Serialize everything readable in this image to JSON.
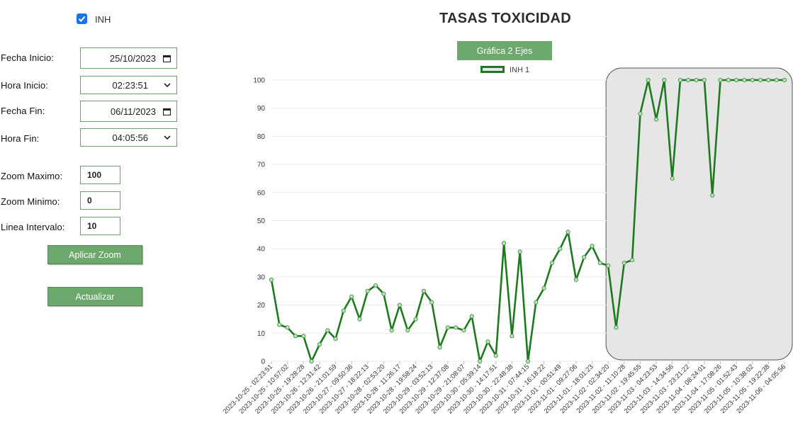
{
  "controls": {
    "checkbox_label": "INH",
    "fecha_inicio_label": "Fecha Inicio:",
    "fecha_inicio_value": "25/10/2023",
    "hora_inicio_label": "Hora Inicio:",
    "hora_inicio_value": "02:23:51",
    "fecha_fin_label": "Fecha Fin:",
    "fecha_fin_value": "06/11/2023",
    "hora_fin_label": "Hora Fin:",
    "hora_fin_value": "04:05:56",
    "zoom_max_label": "Zoom Maximo:",
    "zoom_max_value": "100",
    "zoom_min_label": "Zoom Minimo:",
    "zoom_min_value": "0",
    "linea_intervalo_label": "Linea Intervalo:",
    "linea_intervalo_value": "10",
    "apply_zoom_label": "Aplicar Zoom",
    "refresh_label": "Actualizar"
  },
  "chart_title": "TASAS TOXICIDAD",
  "chart_button_label": "Gráfica 2 Ejes",
  "colors": {
    "accent": "#6da86d",
    "series": "#1e7a1e",
    "checkbox": "#1a73e8",
    "highlight": "#e6e6e6"
  },
  "chart_data": {
    "type": "line",
    "title": "TASAS TOXICIDAD",
    "legend_position": "top-center",
    "grid": true,
    "ylim": [
      0,
      100
    ],
    "yticks": [
      0,
      10,
      20,
      30,
      40,
      50,
      60,
      70,
      80,
      90,
      100
    ],
    "xticks": [
      "2023-10-25 - 02:23:51",
      "2023-10-25 - 10:57:02",
      "2023-10-25 - 19:28:28",
      "2023-10-26 - 12:31:42",
      "2023-10-26 - 21:01:59",
      "2023-10-27 - 09:50:36",
      "2023-10-27 - 18:22:13",
      "2023-10-28 - 02:53:20",
      "2023-10-28 - 11:26:17",
      "2023-10-28 - 19:58:24",
      "2023-10-29 - 03:52:13",
      "2023-10-29 - 12:37:08",
      "2023-10-29 - 21:08:07",
      "2023-10-30 - 05:39:14",
      "2023-10-30 - 14:17:51",
      "2023-10-30 - 22:48:38",
      "2023-10-31 - 07:44:15",
      "2023-10-31 - 16:18:22",
      "2023-11-01 - 00:51:49",
      "2023-11-01 - 09:27:06",
      "2023-11-01 - 18:01:23",
      "2023-11-02 - 02:34:20",
      "2023-11-02 - 11:10:28",
      "2023-11-02 - 19:45:55",
      "2023-11-03 - 04:23:53",
      "2023-11-03 - 14:34:56",
      "2023-11-03 - 23:21:22",
      "2023-11-04 - 08:24:01",
      "2023-11-04 - 17:08:26",
      "2023-11-05 - 01:52:43",
      "2023-11-05 - 10:38:02",
      "2023-11-05 - 19:22:38",
      "2023-11-06 - 04:05:56"
    ],
    "series": [
      {
        "name": "INH 1",
        "values": [
          29,
          13,
          12,
          9,
          9,
          0,
          6,
          11,
          8,
          18,
          23,
          15,
          25,
          27,
          24,
          11,
          20,
          11,
          15,
          25,
          21,
          5,
          12,
          12,
          11,
          16,
          0,
          7,
          2,
          42,
          9,
          39,
          0,
          21,
          26,
          35,
          40,
          46,
          29,
          37,
          41,
          35,
          34,
          12,
          35,
          36,
          88,
          100,
          86,
          100,
          65,
          100,
          100,
          100,
          100,
          59,
          100,
          100,
          100,
          100,
          100,
          100,
          100,
          100,
          100
        ]
      }
    ],
    "highlight_from_index": 42
  }
}
